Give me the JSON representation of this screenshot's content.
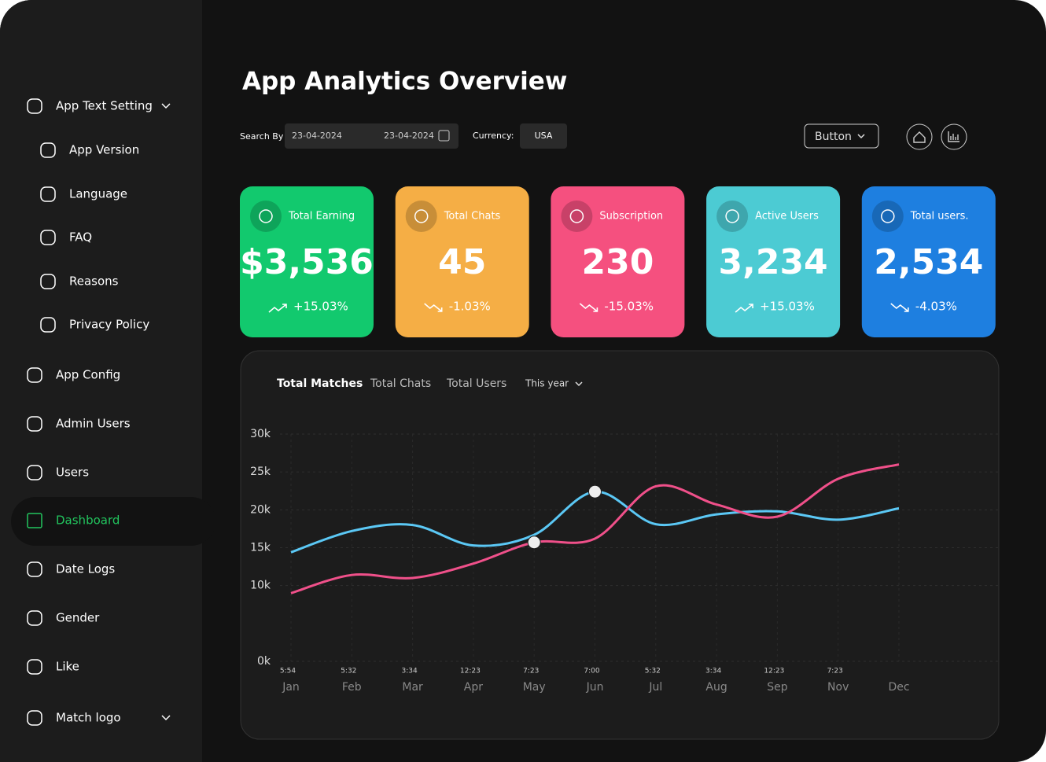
{
  "sidebar": {
    "items": [
      {
        "label": "App Text Setting"
      },
      {
        "label": "App Version"
      },
      {
        "label": "Language"
      },
      {
        "label": "FAQ"
      },
      {
        "label": "Reasons"
      },
      {
        "label": "Privacy Policy"
      },
      {
        "label": "App Config"
      },
      {
        "label": "Admin Users"
      },
      {
        "label": "Users"
      },
      {
        "label": "Dashboard"
      },
      {
        "label": "Date Logs"
      },
      {
        "label": "Gender"
      },
      {
        "label": "Like"
      },
      {
        "label": "Match logo"
      }
    ]
  },
  "header": {
    "title": "App Analytics Overview"
  },
  "filters": {
    "search_label": "Search By",
    "date_from": "23-04-2024",
    "date_to": "23-04-2024",
    "currency_label": "Currency:",
    "currency": "USA",
    "button": "Button"
  },
  "cards": [
    {
      "title": "Total Earning",
      "value": "$3,536",
      "change": "+15.03%",
      "color": "#12c96e"
    },
    {
      "title": "Total Chats",
      "value": "45",
      "change": "-1.03%",
      "color": "#f5ae45"
    },
    {
      "title": "Subscription",
      "value": "230",
      "change": "-15.03%",
      "color": "#f5507f"
    },
    {
      "title": "Active Users",
      "value": "3,234",
      "change": "+15.03%",
      "color": "#4ccbd3"
    },
    {
      "title": "Total users.",
      "value": "2,534",
      "change": "-4.03%",
      "color": "#1e7fe0"
    }
  ],
  "chart_data": {
    "type": "line",
    "tabs": [
      "Total Matches",
      "Total Chats",
      "Total Users"
    ],
    "period": "This year",
    "categories": [
      "Jan",
      "Feb",
      "Mar",
      "Apr",
      "May",
      "Jun",
      "Jul",
      "Aug",
      "Sep",
      "Nov",
      "Dec"
    ],
    "times": [
      "5:54",
      "5:32",
      "3:34",
      "12:23",
      "7:23",
      "7:00",
      "5:32",
      "3:34",
      "12:23",
      "7:23",
      null
    ],
    "series": [
      {
        "color": "#5bc8f5",
        "values": [
          14.4,
          17.2,
          18,
          15.3,
          16.7,
          22.4,
          18.1,
          19.4,
          19.8,
          18.7,
          20.2
        ]
      },
      {
        "color": "#f0508a",
        "values": [
          9,
          11.4,
          11,
          12.9,
          15.7,
          16.2,
          23.1,
          20.7,
          19.1,
          24.1,
          26
        ]
      }
    ],
    "ylim": [
      0,
      30
    ],
    "yticks": [
      {
        "value": 30,
        "label": "30k"
      },
      {
        "value": 25,
        "label": "25k"
      },
      {
        "value": 20,
        "label": "20k"
      },
      {
        "value": 15,
        "label": "15k"
      },
      {
        "value": 10,
        "label": "10k"
      },
      {
        "value": 0,
        "label": "0k"
      }
    ],
    "grid": true
  }
}
